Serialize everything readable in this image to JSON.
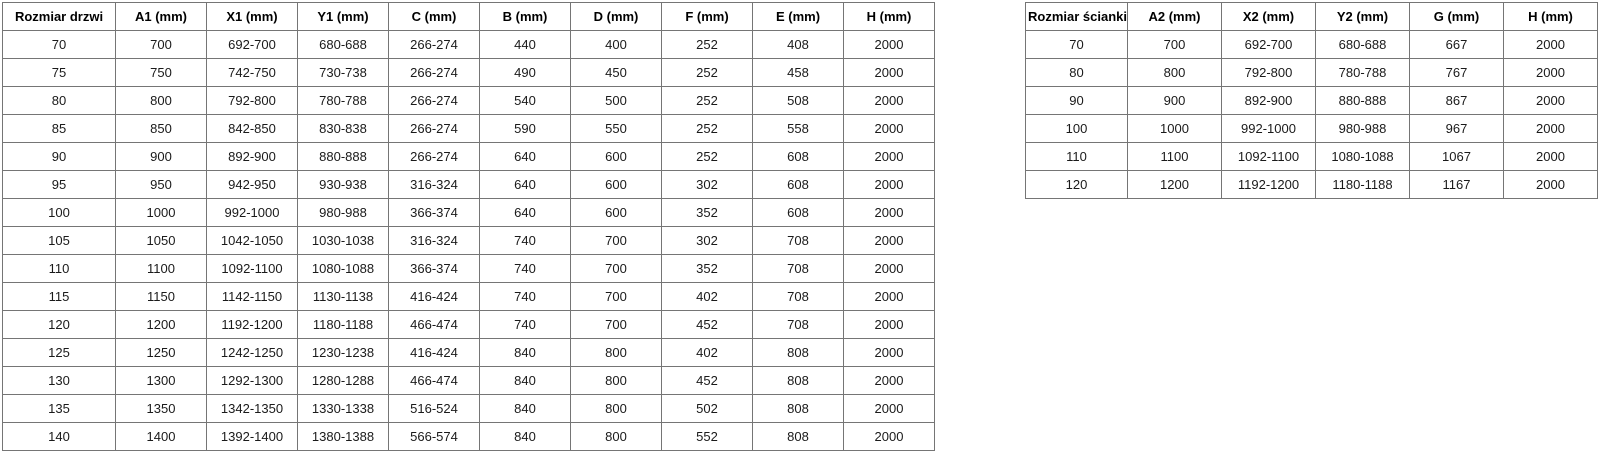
{
  "colors": {
    "background": "#ffffff",
    "table_border": "#757575",
    "text": "#000000"
  },
  "tables": [
    {
      "name": "door-dimensions",
      "headers": [
        "Rozmiar drzwi",
        "A1 (mm)",
        "X1 (mm)",
        "Y1 (mm)",
        "C (mm)",
        "B (mm)",
        "D (mm)",
        "F (mm)",
        "E (mm)",
        "H (mm)"
      ],
      "rows": [
        [
          "70",
          "700",
          "692-700",
          "680-688",
          "266-274",
          "440",
          "400",
          "252",
          "408",
          "2000"
        ],
        [
          "75",
          "750",
          "742-750",
          "730-738",
          "266-274",
          "490",
          "450",
          "252",
          "458",
          "2000"
        ],
        [
          "80",
          "800",
          "792-800",
          "780-788",
          "266-274",
          "540",
          "500",
          "252",
          "508",
          "2000"
        ],
        [
          "85",
          "850",
          "842-850",
          "830-838",
          "266-274",
          "590",
          "550",
          "252",
          "558",
          "2000"
        ],
        [
          "90",
          "900",
          "892-900",
          "880-888",
          "266-274",
          "640",
          "600",
          "252",
          "608",
          "2000"
        ],
        [
          "95",
          "950",
          "942-950",
          "930-938",
          "316-324",
          "640",
          "600",
          "302",
          "608",
          "2000"
        ],
        [
          "100",
          "1000",
          "992-1000",
          "980-988",
          "366-374",
          "640",
          "600",
          "352",
          "608",
          "2000"
        ],
        [
          "105",
          "1050",
          "1042-1050",
          "1030-1038",
          "316-324",
          "740",
          "700",
          "302",
          "708",
          "2000"
        ],
        [
          "110",
          "1100",
          "1092-1100",
          "1080-1088",
          "366-374",
          "740",
          "700",
          "352",
          "708",
          "2000"
        ],
        [
          "115",
          "1150",
          "1142-1150",
          "1130-1138",
          "416-424",
          "740",
          "700",
          "402",
          "708",
          "2000"
        ],
        [
          "120",
          "1200",
          "1192-1200",
          "1180-1188",
          "466-474",
          "740",
          "700",
          "452",
          "708",
          "2000"
        ],
        [
          "125",
          "1250",
          "1242-1250",
          "1230-1238",
          "416-424",
          "840",
          "800",
          "402",
          "808",
          "2000"
        ],
        [
          "130",
          "1300",
          "1292-1300",
          "1280-1288",
          "466-474",
          "840",
          "800",
          "452",
          "808",
          "2000"
        ],
        [
          "135",
          "1350",
          "1342-1350",
          "1330-1338",
          "516-524",
          "840",
          "800",
          "502",
          "808",
          "2000"
        ],
        [
          "140",
          "1400",
          "1392-1400",
          "1380-1388",
          "566-574",
          "840",
          "800",
          "552",
          "808",
          "2000"
        ]
      ]
    },
    {
      "name": "wall-dimensions",
      "headers": [
        "Rozmiar ścianki",
        "A2 (mm)",
        "X2 (mm)",
        "Y2 (mm)",
        "G (mm)",
        "H (mm)"
      ],
      "rows": [
        [
          "70",
          "700",
          "692-700",
          "680-688",
          "667",
          "2000"
        ],
        [
          "80",
          "800",
          "792-800",
          "780-788",
          "767",
          "2000"
        ],
        [
          "90",
          "900",
          "892-900",
          "880-888",
          "867",
          "2000"
        ],
        [
          "100",
          "1000",
          "992-1000",
          "980-988",
          "967",
          "2000"
        ],
        [
          "110",
          "1100",
          "1092-1100",
          "1080-1088",
          "1067",
          "2000"
        ],
        [
          "120",
          "1200",
          "1192-1200",
          "1180-1188",
          "1167",
          "2000"
        ]
      ]
    }
  ]
}
